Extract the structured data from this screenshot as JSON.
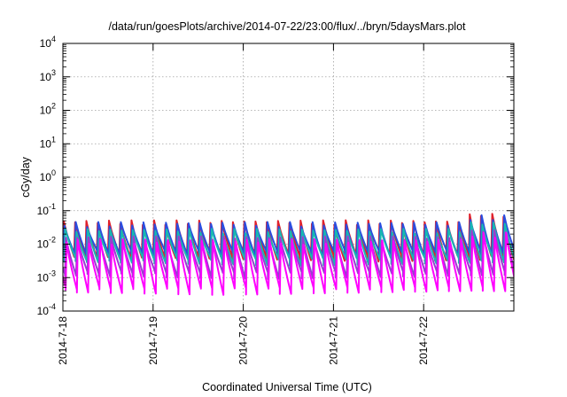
{
  "chart_data": {
    "type": "line",
    "title": "/data/run/goesPlots/archive/2014-07-22/23:00/flux/../bryn/5daysMars.plot",
    "xlabel": "Coordinated Universal Time (UTC)",
    "ylabel": "cGy/day",
    "y_scale": "log",
    "ylim": [
      0.0001,
      10000
    ],
    "y_ticks": [
      {
        "base": "10",
        "exp": "-4",
        "value": 0.0001
      },
      {
        "base": "10",
        "exp": "-3",
        "value": 0.001
      },
      {
        "base": "10",
        "exp": "-2",
        "value": 0.01
      },
      {
        "base": "10",
        "exp": "-1",
        "value": 0.1
      },
      {
        "base": "10",
        "exp": "0",
        "value": 1
      },
      {
        "base": "10",
        "exp": "1",
        "value": 10
      },
      {
        "base": "10",
        "exp": "2",
        "value": 100
      },
      {
        "base": "10",
        "exp": "3",
        "value": 1000
      },
      {
        "base": "10",
        "exp": "4",
        "value": 10000
      }
    ],
    "x_ticks": [
      "2014-7-18",
      "2014-7-19",
      "2014-7-20",
      "2014-7-21",
      "2014-7-22"
    ],
    "xlim": [
      "2014-07-18 00:00",
      "2014-07-23 00:00"
    ],
    "grid": true,
    "legend": "none",
    "sawtooth": {
      "period_hours": 3,
      "description": "Repeating sawtooth: each cycle rises sharply to a peak then decays over ~3 hours.",
      "series": [
        {
          "color": "#e0202a",
          "peak": 0.045,
          "trough": 0.004
        },
        {
          "color": "#2a4de0",
          "peak": 0.04,
          "trough": 0.005
        },
        {
          "color": "#18b8b0",
          "peak": 0.025,
          "trough": 0.003
        },
        {
          "color": "#9a3dd0",
          "peak": 0.015,
          "trough": 0.0012
        },
        {
          "color": "#ff00ff",
          "peak": 0.012,
          "trough": 0.0004
        }
      ],
      "late_peak_boost": {
        "from": "2014-07-22 12:00",
        "peak_multiplier": 1.6
      }
    }
  }
}
